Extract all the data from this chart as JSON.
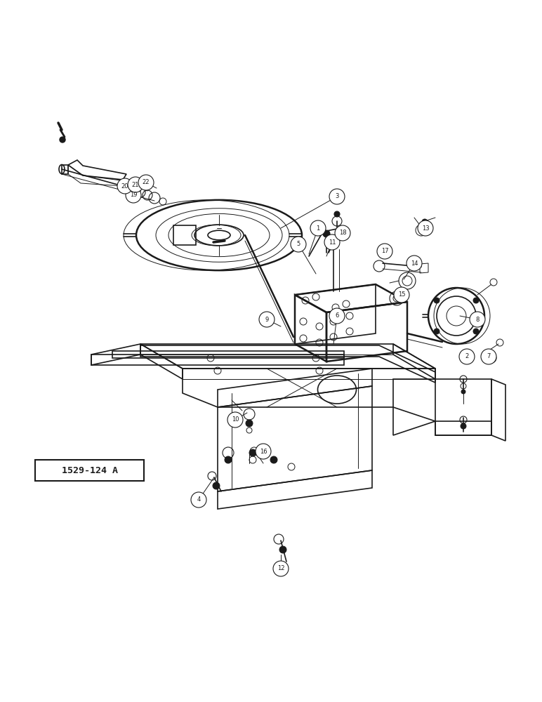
{
  "bg_color": "#ffffff",
  "line_color": "#1a1a1a",
  "label_box_text": "1529-124 A",
  "fig_width": 7.72,
  "fig_height": 10.0,
  "dpi": 100
}
